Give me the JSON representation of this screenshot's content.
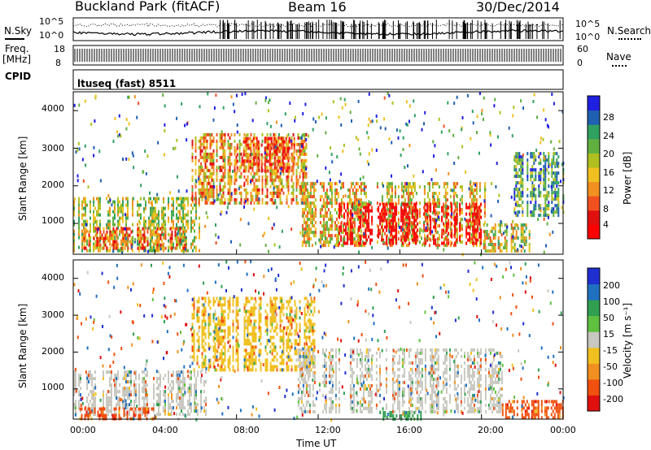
{
  "header": {
    "site": "Buckland Park (fitACF)",
    "beam": "Beam 16",
    "date": "30/Dec/2014"
  },
  "top_panels": {
    "nsky_label": "N.Sky",
    "nsky_ticks": [
      "10^5",
      "10^0"
    ],
    "nsearch_label": "N.Search",
    "nsearch_ticks": [
      "10^5",
      "10^0"
    ],
    "freq_label": "Freq.",
    "freq_unit": "[MHz]",
    "freq_ticks": [
      "18",
      "8"
    ],
    "nave_label": "Nave",
    "nave_ticks": [
      "60",
      "0"
    ],
    "cpid_label": "CPID",
    "cpid_value": "ltuseq (fast) 8511"
  },
  "x_axis": {
    "label": "Time UT",
    "ticks": [
      "00:00",
      "04:00",
      "08:00",
      "12:00",
      "16:00",
      "20:00",
      "00:00"
    ]
  },
  "chart_data": [
    {
      "type": "heatmap",
      "parameter": "Power",
      "ylabel": "Slant Range [km]",
      "xlabel": "Time UT",
      "x_range_hours": [
        0,
        24
      ],
      "ylim": [
        180,
        4500
      ],
      "y_ticks": [
        "1000",
        "2000",
        "3000",
        "4000"
      ],
      "colorbar": {
        "label": "Power [dB]",
        "ticks": [
          "28",
          "24",
          "20",
          "16",
          "12",
          "8",
          "4"
        ],
        "range": [
          0,
          30
        ],
        "colors": [
          "#1f1fe0",
          "#2060b0",
          "#30a060",
          "#60b040",
          "#b0c020",
          "#f0c020",
          "#f09020",
          "#f05020",
          "#e01010",
          "#ff0000"
        ]
      },
      "regions": [
        {
          "t0": 0.0,
          "t1": 6.2,
          "r0": 300,
          "r1": 1700,
          "level": 0.45
        },
        {
          "t0": 0.5,
          "t1": 5.5,
          "r0": 300,
          "r1": 900,
          "level": 0.72
        },
        {
          "t0": 5.8,
          "t1": 11.5,
          "r0": 1500,
          "r1": 3400,
          "level": 0.62
        },
        {
          "t0": 8.0,
          "t1": 11.0,
          "r0": 2400,
          "r1": 3300,
          "level": 0.8
        },
        {
          "t0": 11.2,
          "t1": 20.2,
          "r0": 400,
          "r1": 2100,
          "level": 0.55
        },
        {
          "t0": 13.0,
          "t1": 20.0,
          "r0": 450,
          "r1": 1550,
          "level": 0.95
        },
        {
          "t0": 20.0,
          "t1": 22.6,
          "r0": 300,
          "r1": 1000,
          "level": 0.5
        },
        {
          "t0": 21.5,
          "t1": 24.0,
          "r0": 1200,
          "r1": 2900,
          "level": 0.3
        }
      ]
    },
    {
      "type": "heatmap",
      "parameter": "Velocity",
      "ylabel": "Slant Range [km]",
      "xlabel": "Time UT",
      "x_range_hours": [
        0,
        24
      ],
      "ylim": [
        180,
        4500
      ],
      "y_ticks": [
        "1000",
        "2000",
        "3000",
        "4000"
      ],
      "colorbar": {
        "label": "Velocity [m s⁻¹]",
        "ticks": [
          "200",
          "100",
          "50",
          "15",
          "-15",
          "-50",
          "-100",
          "-200"
        ],
        "colors": [
          "#1f2fd0",
          "#2070c0",
          "#30a050",
          "#60c040",
          "#c8c8c0",
          "#f0c020",
          "#f09020",
          "#f05010",
          "#e01010"
        ]
      },
      "regions": [
        {
          "t0": 0.0,
          "t1": 6.5,
          "r0": 300,
          "r1": 1500,
          "value": 0
        },
        {
          "t0": 0.3,
          "t1": 4.0,
          "r0": 180,
          "r1": 500,
          "value": -120
        },
        {
          "t0": 5.8,
          "t1": 11.8,
          "r0": 1500,
          "r1": 3500,
          "value": -40
        },
        {
          "t0": 11.0,
          "t1": 21.0,
          "r0": 400,
          "r1": 2100,
          "value": 0
        },
        {
          "t0": 15.0,
          "t1": 17.0,
          "r0": 200,
          "r1": 400,
          "value": 60
        },
        {
          "t0": 21.0,
          "t1": 24.0,
          "r0": 200,
          "r1": 700,
          "value": -150
        }
      ]
    }
  ]
}
